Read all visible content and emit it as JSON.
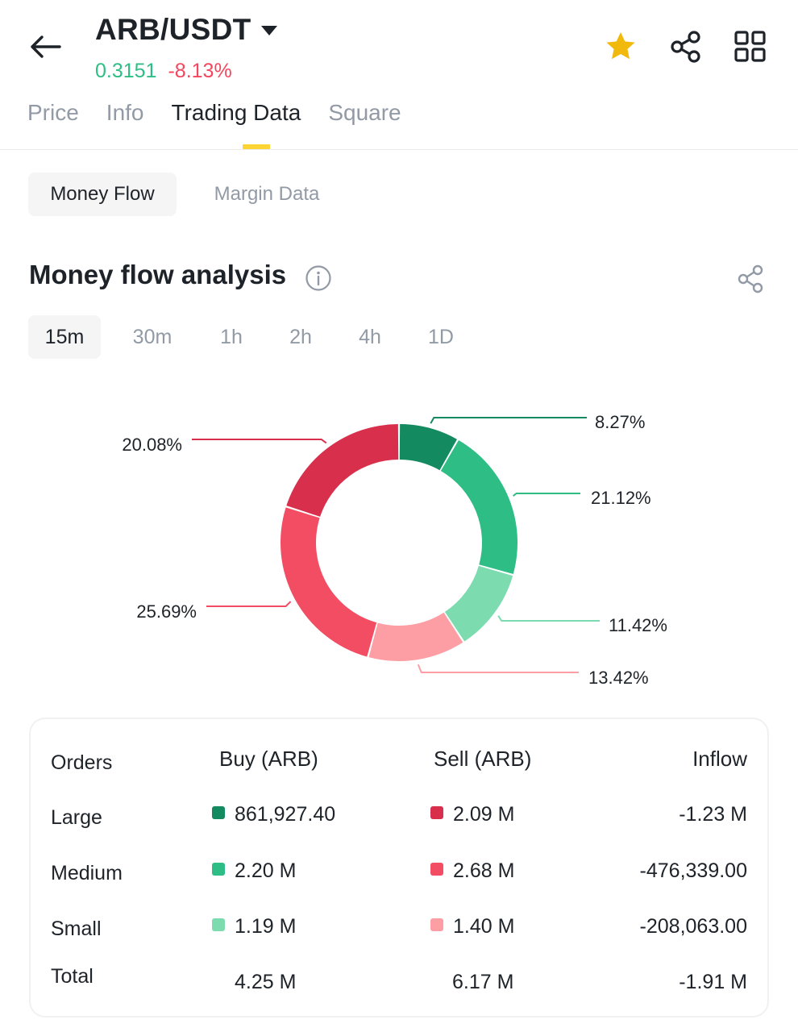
{
  "header": {
    "pair": "ARB/USDT",
    "price": "0.3151",
    "change": "-8.13%"
  },
  "tabs": [
    {
      "label": "Price",
      "active": false
    },
    {
      "label": "Info",
      "active": false
    },
    {
      "label": "Trading Data",
      "active": true
    },
    {
      "label": "Square",
      "active": false
    }
  ],
  "subtabs": [
    {
      "label": "Money Flow",
      "active": true
    },
    {
      "label": "Margin Data",
      "active": false
    }
  ],
  "section": {
    "title": "Money flow analysis"
  },
  "intervals": [
    {
      "label": "15m",
      "active": true
    },
    {
      "label": "30m",
      "active": false
    },
    {
      "label": "1h",
      "active": false
    },
    {
      "label": "2h",
      "active": false
    },
    {
      "label": "4h",
      "active": false
    },
    {
      "label": "1D",
      "active": false
    }
  ],
  "chart_data": {
    "type": "pie",
    "values": [
      8.27,
      21.12,
      11.42,
      13.42,
      25.69,
      20.08
    ],
    "labels": [
      "8.27%",
      "21.12%",
      "11.42%",
      "13.42%",
      "25.69%",
      "20.08%"
    ],
    "colors": [
      "#138a5f",
      "#2ebd85",
      "#7cdcb0",
      "#fc9ea3",
      "#f24d62",
      "#d8304c"
    ]
  },
  "table": {
    "headers": {
      "orders": "Orders",
      "buy": "Buy (ARB)",
      "sell": "Sell (ARB)",
      "inflow": "Inflow"
    },
    "rows": [
      {
        "label": "Large",
        "buy": "861,927.40",
        "sell": "2.09 M",
        "inflow": "-1.23 M",
        "buy_color": "#138a5f",
        "sell_color": "#d8304c"
      },
      {
        "label": "Medium",
        "buy": "2.20 M",
        "sell": "2.68 M",
        "inflow": "-476,339.00",
        "buy_color": "#2ebd85",
        "sell_color": "#f24d62"
      },
      {
        "label": "Small",
        "buy": "1.19 M",
        "sell": "1.40 M",
        "inflow": "-208,063.00",
        "buy_color": "#7cdcb0",
        "sell_color": "#fc9ea3"
      }
    ],
    "total": {
      "label": "Total",
      "buy": "4.25 M",
      "sell": "6.17 M",
      "inflow": "-1.91 M"
    }
  }
}
